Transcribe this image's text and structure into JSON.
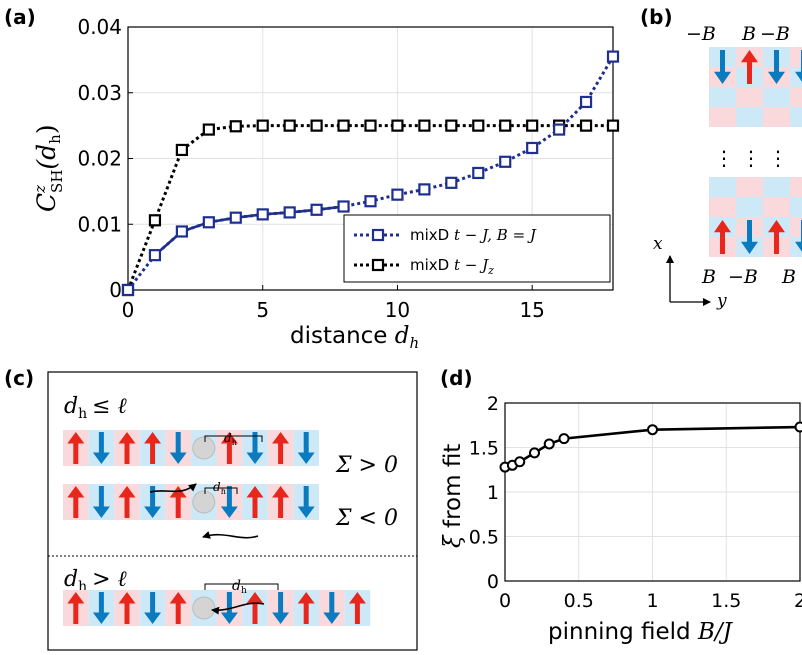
{
  "panel_labels": {
    "a": "(a)",
    "b": "(b)",
    "c": "(c)",
    "d": "(d)"
  },
  "panel_a": {
    "xlabel": "distance",
    "xlabel_var": "d",
    "xlabel_sub": "h",
    "ylabel_var": "C",
    "ylabel_sup": "z",
    "ylabel_sub": "SH",
    "ylabel_arg": "(d",
    "ylabel_arg_sub": "h",
    "ylabel_close": ")",
    "x_ticks": [
      "0",
      "5",
      "10",
      "15"
    ],
    "y_ticks": [
      "0",
      "0.01",
      "0.02",
      "0.03",
      "0.04"
    ],
    "legend": [
      {
        "pre": "mixD",
        "math": "t − J,  B = J"
      },
      {
        "pre": "mixD",
        "math": "t − J"
      }
    ]
  },
  "panel_b": {
    "top_labels": [
      "−B",
      "B",
      "−B"
    ],
    "bottom_labels": [
      "B",
      "−B",
      "B"
    ],
    "x_axis": "x",
    "y_axis": "y",
    "dots": "⋮"
  },
  "panel_c": {
    "cond1": "d",
    "cond1_sub": "h",
    "cond1_rel": "≤ ℓ",
    "cond2": "d",
    "cond2_sub": "h",
    "cond2_rel": "> ℓ",
    "sigma_pos": "Σ > 0",
    "sigma_neg": "Σ < 0",
    "dh": "d",
    "dh_sub": "h"
  },
  "panel_d": {
    "xlabel": "pinning field",
    "xlabel_math": "B/J",
    "ylabel_var": "ξ",
    "ylabel_text": "from fit",
    "x_ticks": [
      "0",
      "0.5",
      "1",
      "1.5",
      "2"
    ],
    "y_ticks": [
      "0",
      "0.5",
      "1",
      "1.5",
      "2"
    ]
  },
  "colors": {
    "blue_series": "#1f2f8f",
    "black_series": "#000000",
    "spin_up": "#e8261b",
    "spin_down": "#0b7bc0",
    "cell_pink": "#f9d9dc",
    "cell_blue": "#cde9f7"
  },
  "chart_data": [
    {
      "type": "line",
      "panel": "a",
      "xlabel": "distance d_h",
      "ylabel": "C^z_SH(d_h)",
      "xlim": [
        0,
        18
      ],
      "ylim": [
        0,
        0.04
      ],
      "grid": true,
      "legend_position": "bottom-right",
      "series": [
        {
          "name": "mixD t − J, B = J",
          "color": "#1f2f8f",
          "x": [
            0,
            1,
            2,
            3,
            4,
            5,
            6,
            7,
            8,
            9,
            10,
            11,
            12,
            13,
            14,
            15,
            16,
            17,
            18
          ],
          "y": [
            0,
            0.0053,
            0.0089,
            0.0103,
            0.011,
            0.0115,
            0.0118,
            0.0122,
            0.0127,
            0.0135,
            0.0145,
            0.0153,
            0.0163,
            0.0178,
            0.0195,
            0.0216,
            0.0244,
            0.0286,
            0.0355
          ]
        },
        {
          "name": "mixD t − J_z",
          "color": "#000000",
          "x": [
            0,
            1,
            2,
            3,
            4,
            5,
            6,
            7,
            8,
            9,
            10,
            11,
            12,
            13,
            14,
            15,
            16,
            17,
            18
          ],
          "y": [
            0,
            0.0106,
            0.0213,
            0.0244,
            0.0249,
            0.025,
            0.025,
            0.025,
            0.025,
            0.025,
            0.025,
            0.025,
            0.025,
            0.025,
            0.025,
            0.025,
            0.025,
            0.025,
            0.025
          ]
        }
      ]
    },
    {
      "type": "line",
      "panel": "d",
      "xlabel": "pinning field B/J",
      "ylabel": "ξ from fit",
      "xlim": [
        0,
        2
      ],
      "ylim": [
        0,
        2
      ],
      "grid": true,
      "series": [
        {
          "x": [
            0,
            0.05,
            0.1,
            0.2,
            0.3,
            0.4,
            1,
            2
          ],
          "y": [
            1.28,
            1.3,
            1.34,
            1.44,
            1.54,
            1.6,
            1.7,
            1.73
          ]
        }
      ]
    }
  ]
}
